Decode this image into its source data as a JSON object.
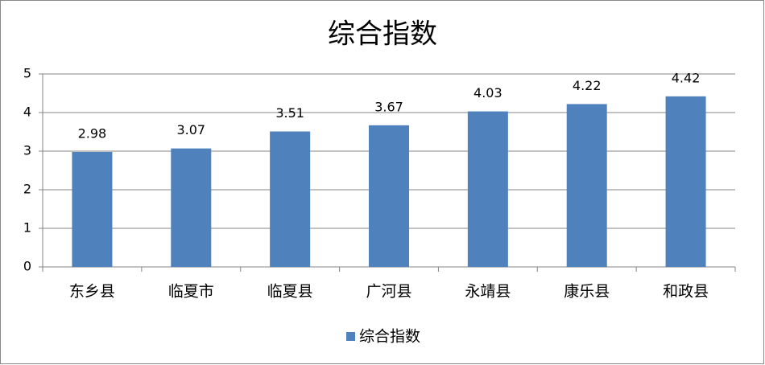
{
  "chart_data": {
    "type": "bar",
    "title": "综合指数",
    "categories": [
      "东乡县",
      "临夏市",
      "临夏县",
      "广河县",
      "永靖县",
      "康乐县",
      "和政县"
    ],
    "series": [
      {
        "name": "综合指数",
        "color": "#4f81bd",
        "values": [
          2.98,
          3.07,
          3.51,
          3.67,
          4.03,
          4.22,
          4.42
        ]
      }
    ],
    "ylim": [
      0,
      5
    ],
    "yticks": [
      0,
      1,
      2,
      3,
      4,
      5
    ],
    "grid": true,
    "legend": "bottom"
  }
}
